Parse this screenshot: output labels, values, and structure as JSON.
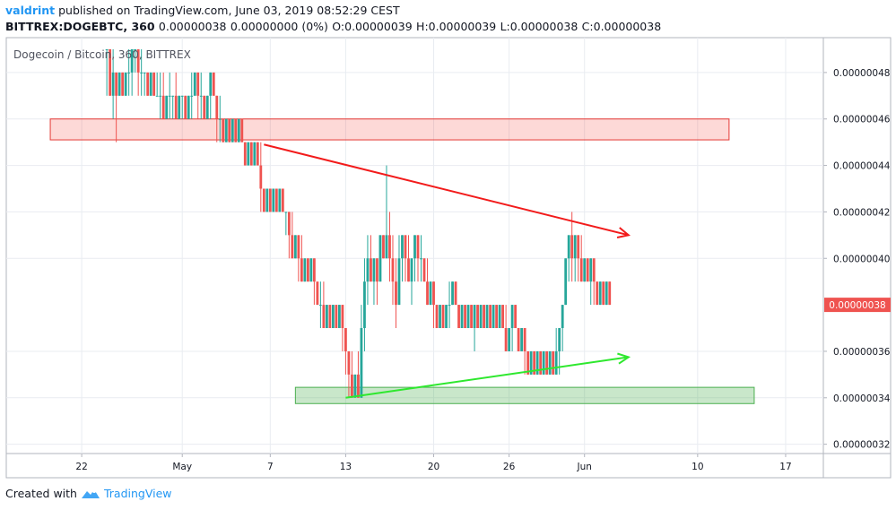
{
  "header": {
    "username": "valdrint",
    "published_text": "published on TradingView.com, June 03, 2019 08:52:29 CEST",
    "symbol": "BITTREX:DOGEBTC, 360",
    "last": "0.00000038",
    "change": "0.00000000 (0%)",
    "open": "O:0.00000039",
    "high": "H:0.00000039",
    "low": "L:0.00000038",
    "close": "C:0.00000038"
  },
  "footer": {
    "created_with": "Created with",
    "brand": "TradingView"
  },
  "chart_data": {
    "type": "candlestick",
    "title": "Dogecoin / Bitcoin, 360, BITTREX",
    "ylim": [
      3.16e-07,
      4.95e-07
    ],
    "y_ticks": [
      "0.00000048",
      "0.00000046",
      "0.00000044",
      "0.00000042",
      "0.00000040",
      "0.00000036",
      "0.00000034",
      "0.00000032"
    ],
    "y_tick_values": [
      4.8e-07,
      4.6e-07,
      4.4e-07,
      4.2e-07,
      4e-07,
      3.6e-07,
      3.4e-07,
      3.2e-07
    ],
    "x_ticks": [
      "22",
      "May",
      "7",
      "13",
      "20",
      "26",
      "Jun",
      "10",
      "17"
    ],
    "x_tick_days": [
      22,
      30,
      37,
      43,
      50,
      56,
      62,
      71,
      78
    ],
    "x_day_domain": [
      16,
      81
    ],
    "last_price_label": "0.00000038",
    "last_price": 3.8e-07,
    "grid": true,
    "colors": {
      "up": "#26a69a",
      "down": "#ef5350",
      "resistance": "#ef5350",
      "support": "#4caf50"
    },
    "candles": [
      {
        "day": 24.0,
        "o": 49,
        "h": 49,
        "l": 47,
        "c": 49
      },
      {
        "day": 24.25,
        "o": 49,
        "h": 49,
        "l": 47,
        "c": 47
      },
      {
        "day": 24.5,
        "o": 47,
        "h": 49,
        "l": 46,
        "c": 48
      },
      {
        "day": 24.75,
        "o": 48,
        "h": 48,
        "l": 45,
        "c": 47
      },
      {
        "day": 25.0,
        "o": 47,
        "h": 48,
        "l": 47,
        "c": 48
      },
      {
        "day": 25.25,
        "o": 48,
        "h": 48,
        "l": 47,
        "c": 47
      },
      {
        "day": 25.5,
        "o": 47,
        "h": 48,
        "l": 47,
        "c": 48
      },
      {
        "day": 25.75,
        "o": 48,
        "h": 49,
        "l": 47,
        "c": 48
      },
      {
        "day": 26.0,
        "o": 48,
        "h": 49,
        "l": 47,
        "c": 49
      },
      {
        "day": 26.25,
        "o": 49,
        "h": 49,
        "l": 48,
        "c": 49
      },
      {
        "day": 26.5,
        "o": 49,
        "h": 49,
        "l": 47,
        "c": 48
      },
      {
        "day": 26.75,
        "o": 48,
        "h": 49,
        "l": 47,
        "c": 48
      },
      {
        "day": 27.0,
        "o": 48,
        "h": 48,
        "l": 47,
        "c": 48
      },
      {
        "day": 27.25,
        "o": 48,
        "h": 48,
        "l": 47,
        "c": 47
      },
      {
        "day": 27.5,
        "o": 47,
        "h": 48,
        "l": 47,
        "c": 48
      },
      {
        "day": 27.75,
        "o": 48,
        "h": 48,
        "l": 47,
        "c": 47
      },
      {
        "day": 28.0,
        "o": 47,
        "h": 48,
        "l": 47,
        "c": 47
      },
      {
        "day": 28.25,
        "o": 47,
        "h": 48,
        "l": 46,
        "c": 47
      },
      {
        "day": 28.5,
        "o": 47,
        "h": 48,
        "l": 46,
        "c": 46
      },
      {
        "day": 28.75,
        "o": 46,
        "h": 47,
        "l": 46,
        "c": 47
      },
      {
        "day": 29.0,
        "o": 47,
        "h": 48,
        "l": 46,
        "c": 47
      },
      {
        "day": 29.25,
        "o": 47,
        "h": 47,
        "l": 46,
        "c": 47
      },
      {
        "day": 29.5,
        "o": 47,
        "h": 48,
        "l": 46,
        "c": 46
      },
      {
        "day": 29.75,
        "o": 46,
        "h": 47,
        "l": 46,
        "c": 47
      },
      {
        "day": 30.0,
        "o": 47,
        "h": 47,
        "l": 46,
        "c": 47
      },
      {
        "day": 30.25,
        "o": 47,
        "h": 47,
        "l": 46,
        "c": 46
      },
      {
        "day": 30.5,
        "o": 46,
        "h": 47,
        "l": 46,
        "c": 47
      },
      {
        "day": 30.75,
        "o": 47,
        "h": 48,
        "l": 46,
        "c": 47
      },
      {
        "day": 31.0,
        "o": 47,
        "h": 48,
        "l": 47,
        "c": 48
      },
      {
        "day": 31.25,
        "o": 48,
        "h": 48,
        "l": 46,
        "c": 47
      },
      {
        "day": 31.5,
        "o": 47,
        "h": 48,
        "l": 46,
        "c": 47
      },
      {
        "day": 31.75,
        "o": 47,
        "h": 47,
        "l": 46,
        "c": 46
      },
      {
        "day": 32.0,
        "o": 46,
        "h": 47,
        "l": 46,
        "c": 47
      },
      {
        "day": 32.25,
        "o": 47,
        "h": 48,
        "l": 46,
        "c": 48
      },
      {
        "day": 32.5,
        "o": 48,
        "h": 48,
        "l": 47,
        "c": 47
      },
      {
        "day": 32.75,
        "o": 47,
        "h": 47,
        "l": 45,
        "c": 46
      },
      {
        "day": 33.0,
        "o": 46,
        "h": 47,
        "l": 45,
        "c": 46
      },
      {
        "day": 33.25,
        "o": 46,
        "h": 46,
        "l": 45,
        "c": 45
      },
      {
        "day": 33.5,
        "o": 45,
        "h": 46,
        "l": 45,
        "c": 46
      },
      {
        "day": 33.75,
        "o": 46,
        "h": 46,
        "l": 45,
        "c": 45
      },
      {
        "day": 34.0,
        "o": 45,
        "h": 46,
        "l": 45,
        "c": 46
      },
      {
        "day": 34.25,
        "o": 46,
        "h": 46,
        "l": 45,
        "c": 45
      },
      {
        "day": 34.5,
        "o": 45,
        "h": 46,
        "l": 45,
        "c": 46
      },
      {
        "day": 34.75,
        "o": 46,
        "h": 46,
        "l": 45,
        "c": 45
      },
      {
        "day": 35.0,
        "o": 45,
        "h": 45,
        "l": 44,
        "c": 44
      },
      {
        "day": 35.25,
        "o": 44,
        "h": 45,
        "l": 44,
        "c": 45
      },
      {
        "day": 35.5,
        "o": 45,
        "h": 45,
        "l": 44,
        "c": 44
      },
      {
        "day": 35.75,
        "o": 44,
        "h": 45,
        "l": 44,
        "c": 45
      },
      {
        "day": 36.0,
        "o": 45,
        "h": 45,
        "l": 44,
        "c": 44
      },
      {
        "day": 36.25,
        "o": 44,
        "h": 45,
        "l": 42,
        "c": 43
      },
      {
        "day": 36.5,
        "o": 43,
        "h": 43,
        "l": 42,
        "c": 42
      },
      {
        "day": 36.75,
        "o": 42,
        "h": 43,
        "l": 42,
        "c": 43
      },
      {
        "day": 37.0,
        "o": 43,
        "h": 43,
        "l": 42,
        "c": 42
      },
      {
        "day": 37.25,
        "o": 42,
        "h": 43,
        "l": 42,
        "c": 43
      },
      {
        "day": 37.5,
        "o": 43,
        "h": 43,
        "l": 42,
        "c": 42
      },
      {
        "day": 37.75,
        "o": 42,
        "h": 43,
        "l": 42,
        "c": 43
      },
      {
        "day": 38.0,
        "o": 43,
        "h": 43,
        "l": 42,
        "c": 42
      },
      {
        "day": 38.25,
        "o": 42,
        "h": 42,
        "l": 41,
        "c": 42
      },
      {
        "day": 38.5,
        "o": 42,
        "h": 42,
        "l": 40,
        "c": 41
      },
      {
        "day": 38.75,
        "o": 41,
        "h": 42,
        "l": 40,
        "c": 40
      },
      {
        "day": 39.0,
        "o": 40,
        "h": 41,
        "l": 40,
        "c": 41
      },
      {
        "day": 39.25,
        "o": 41,
        "h": 41,
        "l": 39,
        "c": 40
      },
      {
        "day": 39.5,
        "o": 40,
        "h": 41,
        "l": 39,
        "c": 39
      },
      {
        "day": 39.75,
        "o": 39,
        "h": 40,
        "l": 39,
        "c": 40
      },
      {
        "day": 40.0,
        "o": 40,
        "h": 40,
        "l": 39,
        "c": 39
      },
      {
        "day": 40.25,
        "o": 39,
        "h": 40,
        "l": 39,
        "c": 40
      },
      {
        "day": 40.5,
        "o": 40,
        "h": 40,
        "l": 38,
        "c": 39
      },
      {
        "day": 40.75,
        "o": 39,
        "h": 39,
        "l": 38,
        "c": 38
      },
      {
        "day": 41.0,
        "o": 38,
        "h": 39,
        "l": 37,
        "c": 38
      },
      {
        "day": 41.25,
        "o": 38,
        "h": 39,
        "l": 37,
        "c": 37
      },
      {
        "day": 41.5,
        "o": 37,
        "h": 38,
        "l": 37,
        "c": 38
      },
      {
        "day": 41.75,
        "o": 38,
        "h": 38,
        "l": 37,
        "c": 37
      },
      {
        "day": 42.0,
        "o": 37,
        "h": 38,
        "l": 37,
        "c": 38
      },
      {
        "day": 42.25,
        "o": 38,
        "h": 38,
        "l": 37,
        "c": 37
      },
      {
        "day": 42.5,
        "o": 37,
        "h": 38,
        "l": 37,
        "c": 38
      },
      {
        "day": 42.75,
        "o": 38,
        "h": 38,
        "l": 36,
        "c": 37
      },
      {
        "day": 43.0,
        "o": 37,
        "h": 37,
        "l": 35,
        "c": 36
      },
      {
        "day": 43.25,
        "o": 36,
        "h": 36,
        "l": 34,
        "c": 35
      },
      {
        "day": 43.5,
        "o": 35,
        "h": 36,
        "l": 34,
        "c": 34
      },
      {
        "day": 43.75,
        "o": 34,
        "h": 35,
        "l": 34,
        "c": 35
      },
      {
        "day": 44.0,
        "o": 35,
        "h": 36,
        "l": 34,
        "c": 34
      },
      {
        "day": 44.25,
        "o": 34,
        "h": 38,
        "l": 34,
        "c": 37
      },
      {
        "day": 44.5,
        "o": 37,
        "h": 40,
        "l": 36,
        "c": 39
      },
      {
        "day": 44.75,
        "o": 39,
        "h": 41,
        "l": 38,
        "c": 40
      },
      {
        "day": 45.0,
        "o": 40,
        "h": 41,
        "l": 39,
        "c": 39
      },
      {
        "day": 45.25,
        "o": 39,
        "h": 40,
        "l": 38,
        "c": 40
      },
      {
        "day": 45.5,
        "o": 40,
        "h": 40,
        "l": 38,
        "c": 39
      },
      {
        "day": 45.75,
        "o": 39,
        "h": 41,
        "l": 39,
        "c": 41
      },
      {
        "day": 46.0,
        "o": 41,
        "h": 41,
        "l": 40,
        "c": 40
      },
      {
        "day": 46.25,
        "o": 40,
        "h": 44,
        "l": 40,
        "c": 41
      },
      {
        "day": 46.5,
        "o": 41,
        "h": 42,
        "l": 39,
        "c": 40
      },
      {
        "day": 46.75,
        "o": 40,
        "h": 41,
        "l": 38,
        "c": 39
      },
      {
        "day": 47.0,
        "o": 39,
        "h": 40,
        "l": 37,
        "c": 38
      },
      {
        "day": 47.25,
        "o": 38,
        "h": 41,
        "l": 38,
        "c": 40
      },
      {
        "day": 47.5,
        "o": 40,
        "h": 41,
        "l": 39,
        "c": 41
      },
      {
        "day": 47.75,
        "o": 41,
        "h": 41,
        "l": 39,
        "c": 40
      },
      {
        "day": 48.0,
        "o": 40,
        "h": 41,
        "l": 39,
        "c": 39
      },
      {
        "day": 48.25,
        "o": 39,
        "h": 40,
        "l": 38,
        "c": 40
      },
      {
        "day": 48.5,
        "o": 40,
        "h": 41,
        "l": 39,
        "c": 41
      },
      {
        "day": 48.75,
        "o": 41,
        "h": 41,
        "l": 39,
        "c": 40
      },
      {
        "day": 49.0,
        "o": 40,
        "h": 41,
        "l": 39,
        "c": 40
      },
      {
        "day": 49.25,
        "o": 40,
        "h": 40,
        "l": 39,
        "c": 39
      },
      {
        "day": 49.5,
        "o": 39,
        "h": 40,
        "l": 38,
        "c": 38
      },
      {
        "day": 49.75,
        "o": 38,
        "h": 39,
        "l": 38,
        "c": 39
      },
      {
        "day": 50.0,
        "o": 39,
        "h": 39,
        "l": 37,
        "c": 38
      },
      {
        "day": 50.25,
        "o": 38,
        "h": 38,
        "l": 37,
        "c": 37
      },
      {
        "day": 50.5,
        "o": 37,
        "h": 38,
        "l": 37,
        "c": 38
      },
      {
        "day": 50.75,
        "o": 38,
        "h": 38,
        "l": 37,
        "c": 37
      },
      {
        "day": 51.0,
        "o": 37,
        "h": 38,
        "l": 37,
        "c": 38
      },
      {
        "day": 51.25,
        "o": 38,
        "h": 39,
        "l": 37,
        "c": 38
      },
      {
        "day": 51.5,
        "o": 38,
        "h": 39,
        "l": 38,
        "c": 39
      },
      {
        "day": 51.75,
        "o": 39,
        "h": 39,
        "l": 38,
        "c": 38
      },
      {
        "day": 52.0,
        "o": 38,
        "h": 38,
        "l": 37,
        "c": 37
      },
      {
        "day": 52.25,
        "o": 37,
        "h": 38,
        "l": 37,
        "c": 38
      },
      {
        "day": 52.5,
        "o": 38,
        "h": 38,
        "l": 37,
        "c": 37
      },
      {
        "day": 52.75,
        "o": 37,
        "h": 38,
        "l": 37,
        "c": 38
      },
      {
        "day": 53.0,
        "o": 38,
        "h": 38,
        "l": 37,
        "c": 37
      },
      {
        "day": 53.25,
        "o": 37,
        "h": 38,
        "l": 36,
        "c": 38
      },
      {
        "day": 53.5,
        "o": 38,
        "h": 38,
        "l": 37,
        "c": 37
      },
      {
        "day": 53.75,
        "o": 37,
        "h": 38,
        "l": 37,
        "c": 38
      },
      {
        "day": 54.0,
        "o": 38,
        "h": 38,
        "l": 37,
        "c": 37
      },
      {
        "day": 54.25,
        "o": 37,
        "h": 38,
        "l": 37,
        "c": 38
      },
      {
        "day": 54.5,
        "o": 38,
        "h": 38,
        "l": 37,
        "c": 37
      },
      {
        "day": 54.75,
        "o": 37,
        "h": 38,
        "l": 37,
        "c": 38
      },
      {
        "day": 55.0,
        "o": 38,
        "h": 38,
        "l": 37,
        "c": 37
      },
      {
        "day": 55.25,
        "o": 37,
        "h": 38,
        "l": 37,
        "c": 38
      },
      {
        "day": 55.5,
        "o": 38,
        "h": 38,
        "l": 37,
        "c": 37
      },
      {
        "day": 55.75,
        "o": 37,
        "h": 38,
        "l": 36,
        "c": 36
      },
      {
        "day": 56.0,
        "o": 36,
        "h": 37,
        "l": 36,
        "c": 37
      },
      {
        "day": 56.25,
        "o": 37,
        "h": 38,
        "l": 36,
        "c": 38
      },
      {
        "day": 56.5,
        "o": 38,
        "h": 38,
        "l": 37,
        "c": 37
      },
      {
        "day": 56.75,
        "o": 37,
        "h": 37,
        "l": 36,
        "c": 36
      },
      {
        "day": 57.0,
        "o": 36,
        "h": 37,
        "l": 36,
        "c": 37
      },
      {
        "day": 57.25,
        "o": 37,
        "h": 37,
        "l": 35,
        "c": 36
      },
      {
        "day": 57.5,
        "o": 36,
        "h": 36,
        "l": 35,
        "c": 35
      },
      {
        "day": 57.75,
        "o": 35,
        "h": 36,
        "l": 35,
        "c": 36
      },
      {
        "day": 58.0,
        "o": 36,
        "h": 36,
        "l": 35,
        "c": 35
      },
      {
        "day": 58.25,
        "o": 35,
        "h": 36,
        "l": 35,
        "c": 36
      },
      {
        "day": 58.5,
        "o": 36,
        "h": 36,
        "l": 35,
        "c": 35
      },
      {
        "day": 58.75,
        "o": 35,
        "h": 36,
        "l": 35,
        "c": 36
      },
      {
        "day": 59.0,
        "o": 36,
        "h": 36,
        "l": 35,
        "c": 35
      },
      {
        "day": 59.25,
        "o": 35,
        "h": 36,
        "l": 35,
        "c": 36
      },
      {
        "day": 59.5,
        "o": 36,
        "h": 36,
        "l": 35,
        "c": 35
      },
      {
        "day": 59.75,
        "o": 35,
        "h": 37,
        "l": 35,
        "c": 36
      },
      {
        "day": 60.0,
        "o": 36,
        "h": 37,
        "l": 35,
        "c": 37
      },
      {
        "day": 60.25,
        "o": 37,
        "h": 38,
        "l": 36,
        "c": 38
      },
      {
        "day": 60.5,
        "o": 38,
        "h": 40,
        "l": 38,
        "c": 40
      },
      {
        "day": 60.75,
        "o": 40,
        "h": 41,
        "l": 39,
        "c": 41
      },
      {
        "day": 61.0,
        "o": 41,
        "h": 42,
        "l": 39,
        "c": 40
      },
      {
        "day": 61.25,
        "o": 40,
        "h": 41,
        "l": 39,
        "c": 41
      },
      {
        "day": 61.5,
        "o": 41,
        "h": 41,
        "l": 39,
        "c": 40
      },
      {
        "day": 61.75,
        "o": 40,
        "h": 41,
        "l": 39,
        "c": 39
      },
      {
        "day": 62.0,
        "o": 39,
        "h": 40,
        "l": 39,
        "c": 40
      },
      {
        "day": 62.25,
        "o": 40,
        "h": 40,
        "l": 39,
        "c": 39
      },
      {
        "day": 62.5,
        "o": 39,
        "h": 40,
        "l": 38,
        "c": 40
      },
      {
        "day": 62.75,
        "o": 40,
        "h": 40,
        "l": 38,
        "c": 39
      },
      {
        "day": 63.0,
        "o": 39,
        "h": 39,
        "l": 38,
        "c": 38
      },
      {
        "day": 63.25,
        "o": 38,
        "h": 39,
        "l": 38,
        "c": 39
      },
      {
        "day": 63.5,
        "o": 39,
        "h": 39,
        "l": 38,
        "c": 38
      },
      {
        "day": 63.75,
        "o": 38,
        "h": 39,
        "l": 38,
        "c": 39
      },
      {
        "day": 64.0,
        "o": 39,
        "h": 39,
        "l": 38,
        "c": 38
      }
    ],
    "annotations": [
      {
        "type": "zone",
        "color": "red",
        "day_start": 19.5,
        "day_end": 73.5,
        "top": 4.6e-07,
        "bottom": 4.51e-07
      },
      {
        "type": "zone",
        "color": "green",
        "day_start": 39.0,
        "day_end": 75.5,
        "top": 3.445e-07,
        "bottom": 3.375e-07
      },
      {
        "type": "arrow",
        "color": "red",
        "from_day": 36.5,
        "from": 4.49e-07,
        "to_day": 65.5,
        "to": 4.1e-07
      },
      {
        "type": "arrow",
        "color": "green",
        "from_day": 43.0,
        "from": 3.4e-07,
        "to_day": 65.5,
        "to": 3.575e-07
      }
    ]
  }
}
